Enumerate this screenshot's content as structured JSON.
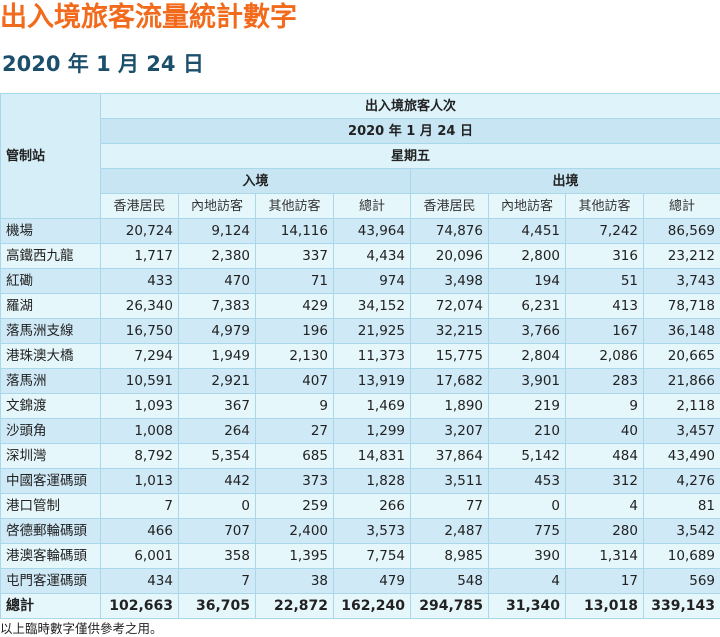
{
  "page": {
    "title": "出入境旅客流量統計數字",
    "subtitle": "2020 年 1 月 24 日",
    "footer": "以上臨時數字僅供參考之用。"
  },
  "table": {
    "station_header": "管制站",
    "group_header": "出入境旅客人次",
    "date_header": "2020 年 1 月 24 日",
    "weekday_header": "星期五",
    "arrival_header": "入境",
    "departure_header": "出境",
    "columns": [
      "香港居民",
      "內地訪客",
      "其他訪客",
      "總計",
      "香港居民",
      "內地訪客",
      "其他訪客",
      "總計"
    ],
    "rows": [
      {
        "station": "機場",
        "values": [
          "20,724",
          "9,124",
          "14,116",
          "43,964",
          "74,876",
          "4,451",
          "7,242",
          "86,569"
        ]
      },
      {
        "station": "高鐵西九龍",
        "values": [
          "1,717",
          "2,380",
          "337",
          "4,434",
          "20,096",
          "2,800",
          "316",
          "23,212"
        ]
      },
      {
        "station": "紅磡",
        "values": [
          "433",
          "470",
          "71",
          "974",
          "3,498",
          "194",
          "51",
          "3,743"
        ]
      },
      {
        "station": "羅湖",
        "values": [
          "26,340",
          "7,383",
          "429",
          "34,152",
          "72,074",
          "6,231",
          "413",
          "78,718"
        ]
      },
      {
        "station": "落馬洲支線",
        "values": [
          "16,750",
          "4,979",
          "196",
          "21,925",
          "32,215",
          "3,766",
          "167",
          "36,148"
        ]
      },
      {
        "station": "港珠澳大橋",
        "values": [
          "7,294",
          "1,949",
          "2,130",
          "11,373",
          "15,775",
          "2,804",
          "2,086",
          "20,665"
        ]
      },
      {
        "station": "落馬洲",
        "values": [
          "10,591",
          "2,921",
          "407",
          "13,919",
          "17,682",
          "3,901",
          "283",
          "21,866"
        ]
      },
      {
        "station": "文錦渡",
        "values": [
          "1,093",
          "367",
          "9",
          "1,469",
          "1,890",
          "219",
          "9",
          "2,118"
        ]
      },
      {
        "station": "沙頭角",
        "values": [
          "1,008",
          "264",
          "27",
          "1,299",
          "3,207",
          "210",
          "40",
          "3,457"
        ]
      },
      {
        "station": "深圳灣",
        "values": [
          "8,792",
          "5,354",
          "685",
          "14,831",
          "37,864",
          "5,142",
          "484",
          "43,490"
        ]
      },
      {
        "station": "中國客運碼頭",
        "values": [
          "1,013",
          "442",
          "373",
          "1,828",
          "3,511",
          "453",
          "312",
          "4,276"
        ]
      },
      {
        "station": "港口管制",
        "values": [
          "7",
          "0",
          "259",
          "266",
          "77",
          "0",
          "4",
          "81"
        ]
      },
      {
        "station": "啓德郵輪碼頭",
        "values": [
          "466",
          "707",
          "2,400",
          "3,573",
          "2,487",
          "775",
          "280",
          "3,542"
        ]
      },
      {
        "station": "港澳客輪碼頭",
        "values": [
          "6,001",
          "358",
          "1,395",
          "7,754",
          "8,985",
          "390",
          "1,314",
          "10,689"
        ]
      },
      {
        "station": "屯門客運碼頭",
        "values": [
          "434",
          "7",
          "38",
          "479",
          "548",
          "4",
          "17",
          "569"
        ]
      }
    ],
    "total": {
      "station": "總計",
      "values": [
        "102,663",
        "36,705",
        "22,872",
        "162,240",
        "294,785",
        "31,340",
        "13,018",
        "339,143"
      ]
    }
  },
  "colors": {
    "title": "#f26b1d",
    "subtitle": "#1b4f6b",
    "row_dark": "#cfe9f6",
    "row_light": "#e6f7fb",
    "border": "#a8d8ea"
  }
}
